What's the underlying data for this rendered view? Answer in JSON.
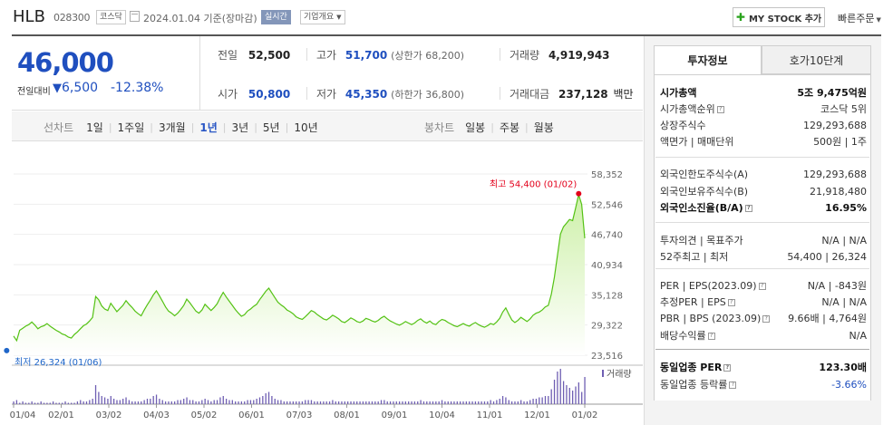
{
  "header": {
    "name": "HLB",
    "code": "028300",
    "market_tag": "코스닥",
    "date_text": "2024.01.04  기준(장마감)",
    "realtime_tag": "실시간",
    "overview_tag": "기업개요",
    "mystock_label": "MY STOCK 추가",
    "quick_order_label": "빠른주문"
  },
  "price": {
    "current": "46,000",
    "diff_label": "전일대비",
    "diff_value": "6,500",
    "diff_pct": "-12.38%"
  },
  "quote": {
    "prev_label": "전일",
    "prev_value": "52,500",
    "high_label": "고가",
    "high_value": "51,700",
    "upper_limit": "(상한가 68,200)",
    "volume_label": "거래량",
    "volume_value": "4,919,943",
    "open_label": "시가",
    "open_value": "50,800",
    "low_label": "저가",
    "low_value": "45,350",
    "lower_limit": "(하한가 36,800)",
    "amount_label": "거래대금",
    "amount_value": "237,128",
    "amount_unit": "백만"
  },
  "periods": {
    "label": "선차트",
    "items": [
      "1일",
      "1주일",
      "3개월",
      "1년",
      "3년",
      "5년",
      "10년"
    ],
    "active": "1년",
    "candle_label": "봉차트",
    "candle_items": [
      "일봉",
      "주봉",
      "월봉"
    ]
  },
  "chart_data": {
    "type": "area",
    "y_ticks": [
      "58,352",
      "52,546",
      "46,740",
      "40,934",
      "35,128",
      "29,322",
      "23,516"
    ],
    "ylim": [
      23516,
      58352
    ],
    "x_ticks": [
      "01/04",
      "02/01",
      "03/02",
      "04/03",
      "05/02",
      "06/01",
      "07/03",
      "08/01",
      "09/01",
      "10/04",
      "11/01",
      "12/01",
      "01/02"
    ],
    "high_label": "최고 54,400 (01/02)",
    "low_label": "최저 26,324 (01/06)",
    "volume_label": "거래량",
    "colors": {
      "line": "#54c214",
      "fill_top": "#cdf0a8",
      "volume": "#6f5fb3",
      "high": "#e3001b",
      "low": "#1f66c9"
    },
    "series": [
      {
        "values": [
          27200,
          26324,
          28300,
          28700,
          29100,
          29400,
          29900,
          29300,
          28600,
          29000,
          29200,
          29600,
          29100,
          28700,
          28300,
          28000,
          27600,
          27400,
          27000,
          26800,
          27500,
          28000,
          28600,
          29200,
          29500,
          30100,
          30800,
          34800,
          34200,
          33000,
          32400,
          32100,
          33500,
          32700,
          31900,
          32500,
          33100,
          34000,
          33300,
          32700,
          32000,
          31500,
          31100,
          32200,
          33200,
          34100,
          35100,
          35900,
          34900,
          33900,
          32800,
          32000,
          31600,
          31100,
          31600,
          32300,
          33100,
          34300,
          33600,
          32800,
          32000,
          31600,
          32200,
          33300,
          32700,
          32100,
          32700,
          33400,
          34600,
          35600,
          34700,
          33900,
          33100,
          32300,
          31600,
          31000,
          31300,
          32000,
          32400,
          32900,
          33300,
          34200,
          35000,
          35800,
          36400,
          35500,
          34600,
          33700,
          33200,
          32800,
          32200,
          31900,
          31500,
          30900,
          30600,
          30400,
          30900,
          31500,
          32100,
          31800,
          31300,
          30900,
          30500,
          30300,
          30700,
          31200,
          30900,
          30500,
          30000,
          29800,
          30200,
          30700,
          30400,
          30000,
          29800,
          30100,
          30600,
          30400,
          30100,
          29900,
          30200,
          30700,
          31000,
          30500,
          30100,
          29800,
          29500,
          29300,
          29600,
          30000,
          29700,
          29400,
          29700,
          30200,
          30500,
          30000,
          29700,
          30100,
          29600,
          29400,
          30000,
          30400,
          30200,
          29800,
          29500,
          29200,
          29000,
          29300,
          29600,
          29300,
          29100,
          29500,
          29800,
          29400,
          29100,
          28900,
          29200,
          29600,
          29400,
          29900,
          30600,
          31800,
          32600,
          31400,
          30300,
          29800,
          30200,
          30800,
          30400,
          30000,
          30500,
          31200,
          31600,
          31800,
          32200,
          32800,
          33100,
          35200,
          38500,
          42600,
          46800,
          48200,
          48900,
          49600,
          49400,
          51800,
          54400,
          52500,
          46000
        ]
      }
    ],
    "volume": [
      2,
      3,
      1,
      2,
      1,
      1,
      2,
      1,
      1,
      2,
      1,
      1,
      1,
      2,
      1,
      1,
      1,
      2,
      1,
      1,
      1,
      2,
      3,
      2,
      2,
      3,
      4,
      14,
      9,
      6,
      5,
      4,
      6,
      4,
      3,
      3,
      4,
      5,
      3,
      2,
      2,
      2,
      2,
      3,
      4,
      4,
      6,
      7,
      4,
      3,
      2,
      2,
      2,
      2,
      3,
      3,
      4,
      5,
      3,
      3,
      2,
      2,
      3,
      4,
      3,
      2,
      3,
      3,
      5,
      6,
      4,
      3,
      3,
      2,
      2,
      2,
      2,
      3,
      3,
      3,
      4,
      5,
      6,
      8,
      9,
      6,
      4,
      3,
      3,
      2,
      2,
      2,
      2,
      2,
      2,
      2,
      3,
      3,
      3,
      2,
      2,
      2,
      2,
      2,
      2,
      3,
      2,
      2,
      2,
      2,
      2,
      2,
      2,
      2,
      2,
      2,
      2,
      2,
      2,
      2,
      2,
      3,
      3,
      2,
      2,
      2,
      2,
      2,
      2,
      2,
      2,
      2,
      2,
      2,
      3,
      2,
      2,
      2,
      2,
      2,
      2,
      3,
      2,
      2,
      2,
      2,
      2,
      2,
      2,
      2,
      2,
      2,
      2,
      2,
      2,
      2,
      2,
      3,
      2,
      3,
      4,
      6,
      5,
      3,
      2,
      2,
      2,
      3,
      2,
      2,
      3,
      4,
      4,
      5,
      5,
      6,
      6,
      11,
      18,
      24,
      26,
      17,
      14,
      12,
      10,
      13,
      16,
      9,
      20
    ]
  },
  "tabs": {
    "invest": "투자정보",
    "hoga": "호가10단계"
  },
  "invest": {
    "rows": [
      {
        "l": "시가총액",
        "r": "5조 9,475억원",
        "bold": true
      },
      {
        "l": "시가총액순위",
        "r": "코스닥 5위"
      },
      {
        "l": "상장주식수",
        "r": "129,293,688"
      },
      {
        "l": "액면가 | 매매단위",
        "r": "500원 | 1주"
      },
      {
        "l": "외국인한도주식수(A)",
        "r": "129,293,688"
      },
      {
        "l": "외국인보유주식수(B)",
        "r": "21,918,480"
      },
      {
        "l": "외국인소진율(B/A)",
        "r": "16.95%",
        "bold": true
      },
      {
        "l": "투자의견 | 목표주가",
        "r": "N/A | N/A"
      },
      {
        "l": "52주최고 | 최저",
        "r": "54,400 | 26,324"
      },
      {
        "l": "PER | EPS(2023.09)",
        "r": "N/A | -843원"
      },
      {
        "l": "추정PER | EPS",
        "r": "N/A | N/A"
      },
      {
        "l": "PBR | BPS (2023.09)",
        "r": "9.66배 | 4,764원"
      },
      {
        "l": "배당수익률",
        "r": "N/A"
      },
      {
        "l": "동일업종 PER",
        "r": "123.30배",
        "bold": true
      },
      {
        "l": "동일업종 등락률",
        "r": "-3.66%",
        "blue": true
      }
    ]
  }
}
